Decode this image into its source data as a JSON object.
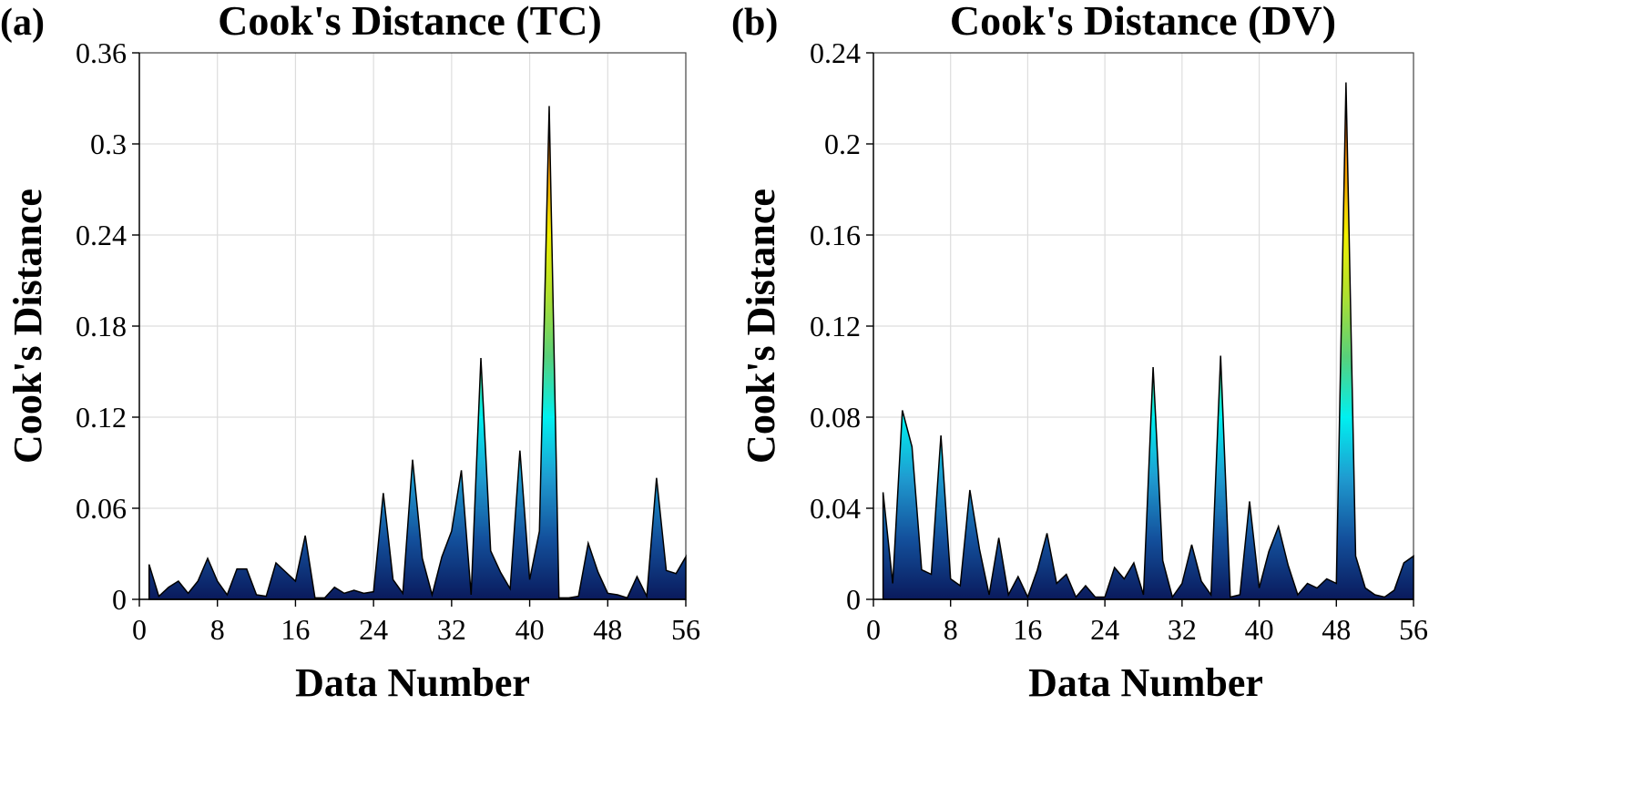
{
  "chart_data": [
    {
      "type": "area",
      "panel_label": "(a)",
      "title": "Cook's Distance (TC)",
      "xlabel": "Data Number",
      "ylabel": "Cook's Distance",
      "xlim": [
        0,
        56
      ],
      "ylim": [
        0,
        0.36
      ],
      "xticks": [
        0,
        8,
        16,
        24,
        32,
        40,
        48,
        56
      ],
      "yticks": [
        0,
        0.06,
        0.12,
        0.18,
        0.24,
        0.3,
        0.36
      ],
      "ytick_labels": [
        "0",
        "0.06",
        "0.12",
        "0.18",
        "0.24",
        "0.3",
        "0.36"
      ],
      "grid": true,
      "colormap": [
        "#0a1a5c",
        "#13509c",
        "#1f9bd0",
        "#00f0f0",
        "#58d07a",
        "#aee030",
        "#f2f000",
        "#f3a000",
        "#e25a10",
        "#b81e08"
      ],
      "x": [
        1,
        2,
        3,
        4,
        5,
        6,
        7,
        8,
        9,
        10,
        11,
        12,
        13,
        14,
        15,
        16,
        17,
        18,
        19,
        20,
        21,
        22,
        23,
        24,
        25,
        26,
        27,
        28,
        29,
        30,
        31,
        32,
        33,
        34,
        35,
        36,
        37,
        38,
        39,
        40,
        41,
        42,
        43,
        44,
        45,
        46,
        47,
        48,
        49,
        50,
        51,
        52,
        53,
        54,
        55,
        56
      ],
      "values": [
        0.023,
        0.002,
        0.008,
        0.012,
        0.004,
        0.012,
        0.027,
        0.012,
        0.003,
        0.02,
        0.02,
        0.003,
        0.002,
        0.024,
        0.018,
        0.012,
        0.042,
        0.001,
        0.001,
        0.008,
        0.004,
        0.006,
        0.004,
        0.005,
        0.07,
        0.013,
        0.004,
        0.092,
        0.027,
        0.003,
        0.028,
        0.045,
        0.085,
        0.003,
        0.159,
        0.032,
        0.018,
        0.007,
        0.098,
        0.013,
        0.045,
        0.325,
        0.001,
        0.001,
        0.002,
        0.037,
        0.018,
        0.004,
        0.003,
        0.001,
        0.015,
        0.002,
        0.08,
        0.019,
        0.017,
        0.028
      ]
    },
    {
      "type": "area",
      "panel_label": "(b)",
      "title": "Cook's Distance (DV)",
      "xlabel": "Data Number",
      "ylabel": "Cook's Distance",
      "xlim": [
        0,
        56
      ],
      "ylim": [
        0,
        0.24
      ],
      "xticks": [
        0,
        8,
        16,
        24,
        32,
        40,
        48,
        56
      ],
      "yticks": [
        0,
        0.04,
        0.08,
        0.12,
        0.16,
        0.2,
        0.24
      ],
      "ytick_labels": [
        "0",
        "0.04",
        "0.08",
        "0.12",
        "0.16",
        "0.2",
        "0.24"
      ],
      "grid": true,
      "colormap": [
        "#0a1a5c",
        "#13509c",
        "#1f9bd0",
        "#00f0f0",
        "#58d07a",
        "#aee030",
        "#f2f000",
        "#f3a000",
        "#e25a10",
        "#b81e08"
      ],
      "x": [
        1,
        2,
        3,
        4,
        5,
        6,
        7,
        8,
        9,
        10,
        11,
        12,
        13,
        14,
        15,
        16,
        17,
        18,
        19,
        20,
        21,
        22,
        23,
        24,
        25,
        26,
        27,
        28,
        29,
        30,
        31,
        32,
        33,
        34,
        35,
        36,
        37,
        38,
        39,
        40,
        41,
        42,
        43,
        44,
        45,
        46,
        47,
        48,
        49,
        50,
        51,
        52,
        53,
        54,
        55,
        56
      ],
      "values": [
        0.047,
        0.007,
        0.083,
        0.067,
        0.013,
        0.011,
        0.072,
        0.009,
        0.006,
        0.048,
        0.022,
        0.002,
        0.027,
        0.002,
        0.01,
        0.001,
        0.013,
        0.029,
        0.007,
        0.011,
        0.001,
        0.006,
        0.001,
        0.001,
        0.014,
        0.009,
        0.016,
        0.002,
        0.102,
        0.017,
        0.001,
        0.007,
        0.024,
        0.008,
        0.002,
        0.107,
        0.001,
        0.002,
        0.043,
        0.005,
        0.021,
        0.032,
        0.015,
        0.002,
        0.007,
        0.005,
        0.009,
        0.007,
        0.227,
        0.019,
        0.005,
        0.002,
        0.001,
        0.004,
        0.016,
        0.019
      ]
    }
  ]
}
